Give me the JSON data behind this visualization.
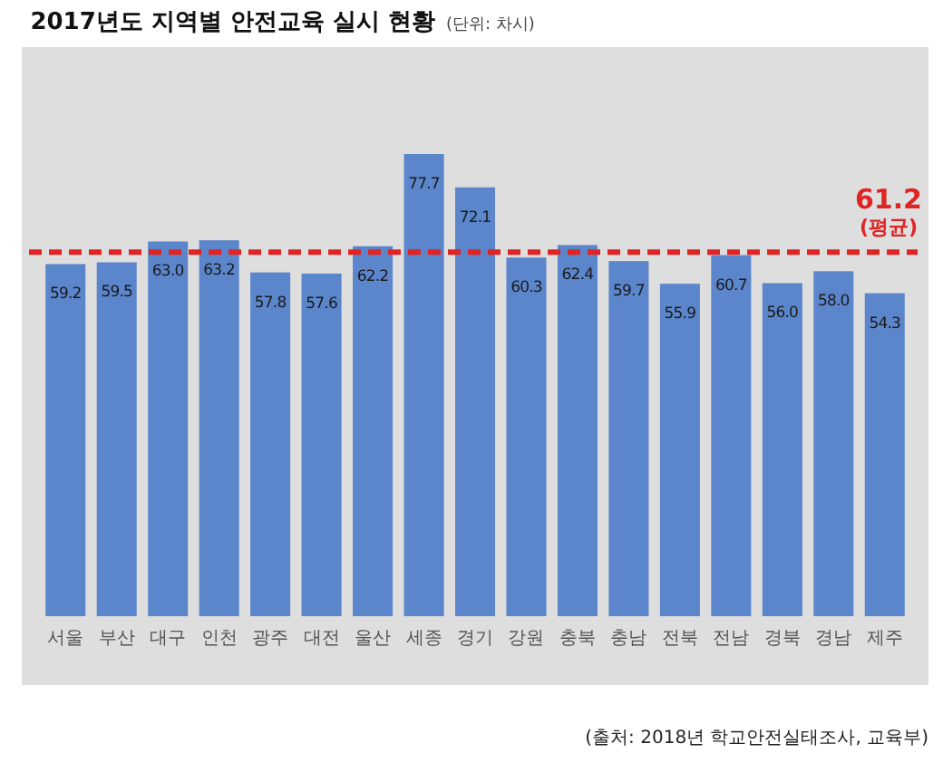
{
  "chart_data": {
    "type": "bar",
    "title": "2017년도 지역별 안전교육 실시 현황",
    "subtitle": "(단위: 차시)",
    "categories": [
      "서울",
      "부산",
      "대구",
      "인천",
      "광주",
      "대전",
      "울산",
      "세종",
      "경기",
      "강원",
      "충북",
      "충남",
      "전북",
      "전남",
      "경북",
      "경남",
      "제주"
    ],
    "values": [
      59.2,
      59.5,
      63.0,
      63.2,
      57.8,
      57.6,
      62.2,
      77.7,
      72.1,
      60.3,
      62.4,
      59.7,
      55.9,
      60.7,
      56.0,
      58.0,
      54.3
    ],
    "value_labels": [
      "59.2",
      "59.5",
      "63.0",
      "63.2",
      "57.8",
      "57.6",
      "62.2",
      "77.7",
      "72.1",
      "60.3",
      "62.4",
      "59.7",
      "55.9",
      "60.7",
      "56.0",
      "58.0",
      "54.3"
    ],
    "color": "#5b86cc",
    "ref_lines": [
      {
        "axis": "y",
        "value": 61.2,
        "label": "61.2\n(평균)",
        "color": "#e02424",
        "line_style": "dashed"
      }
    ],
    "annotations": [
      "(출처: 2018년 학교안전실태조사, 교육부)"
    ]
  }
}
